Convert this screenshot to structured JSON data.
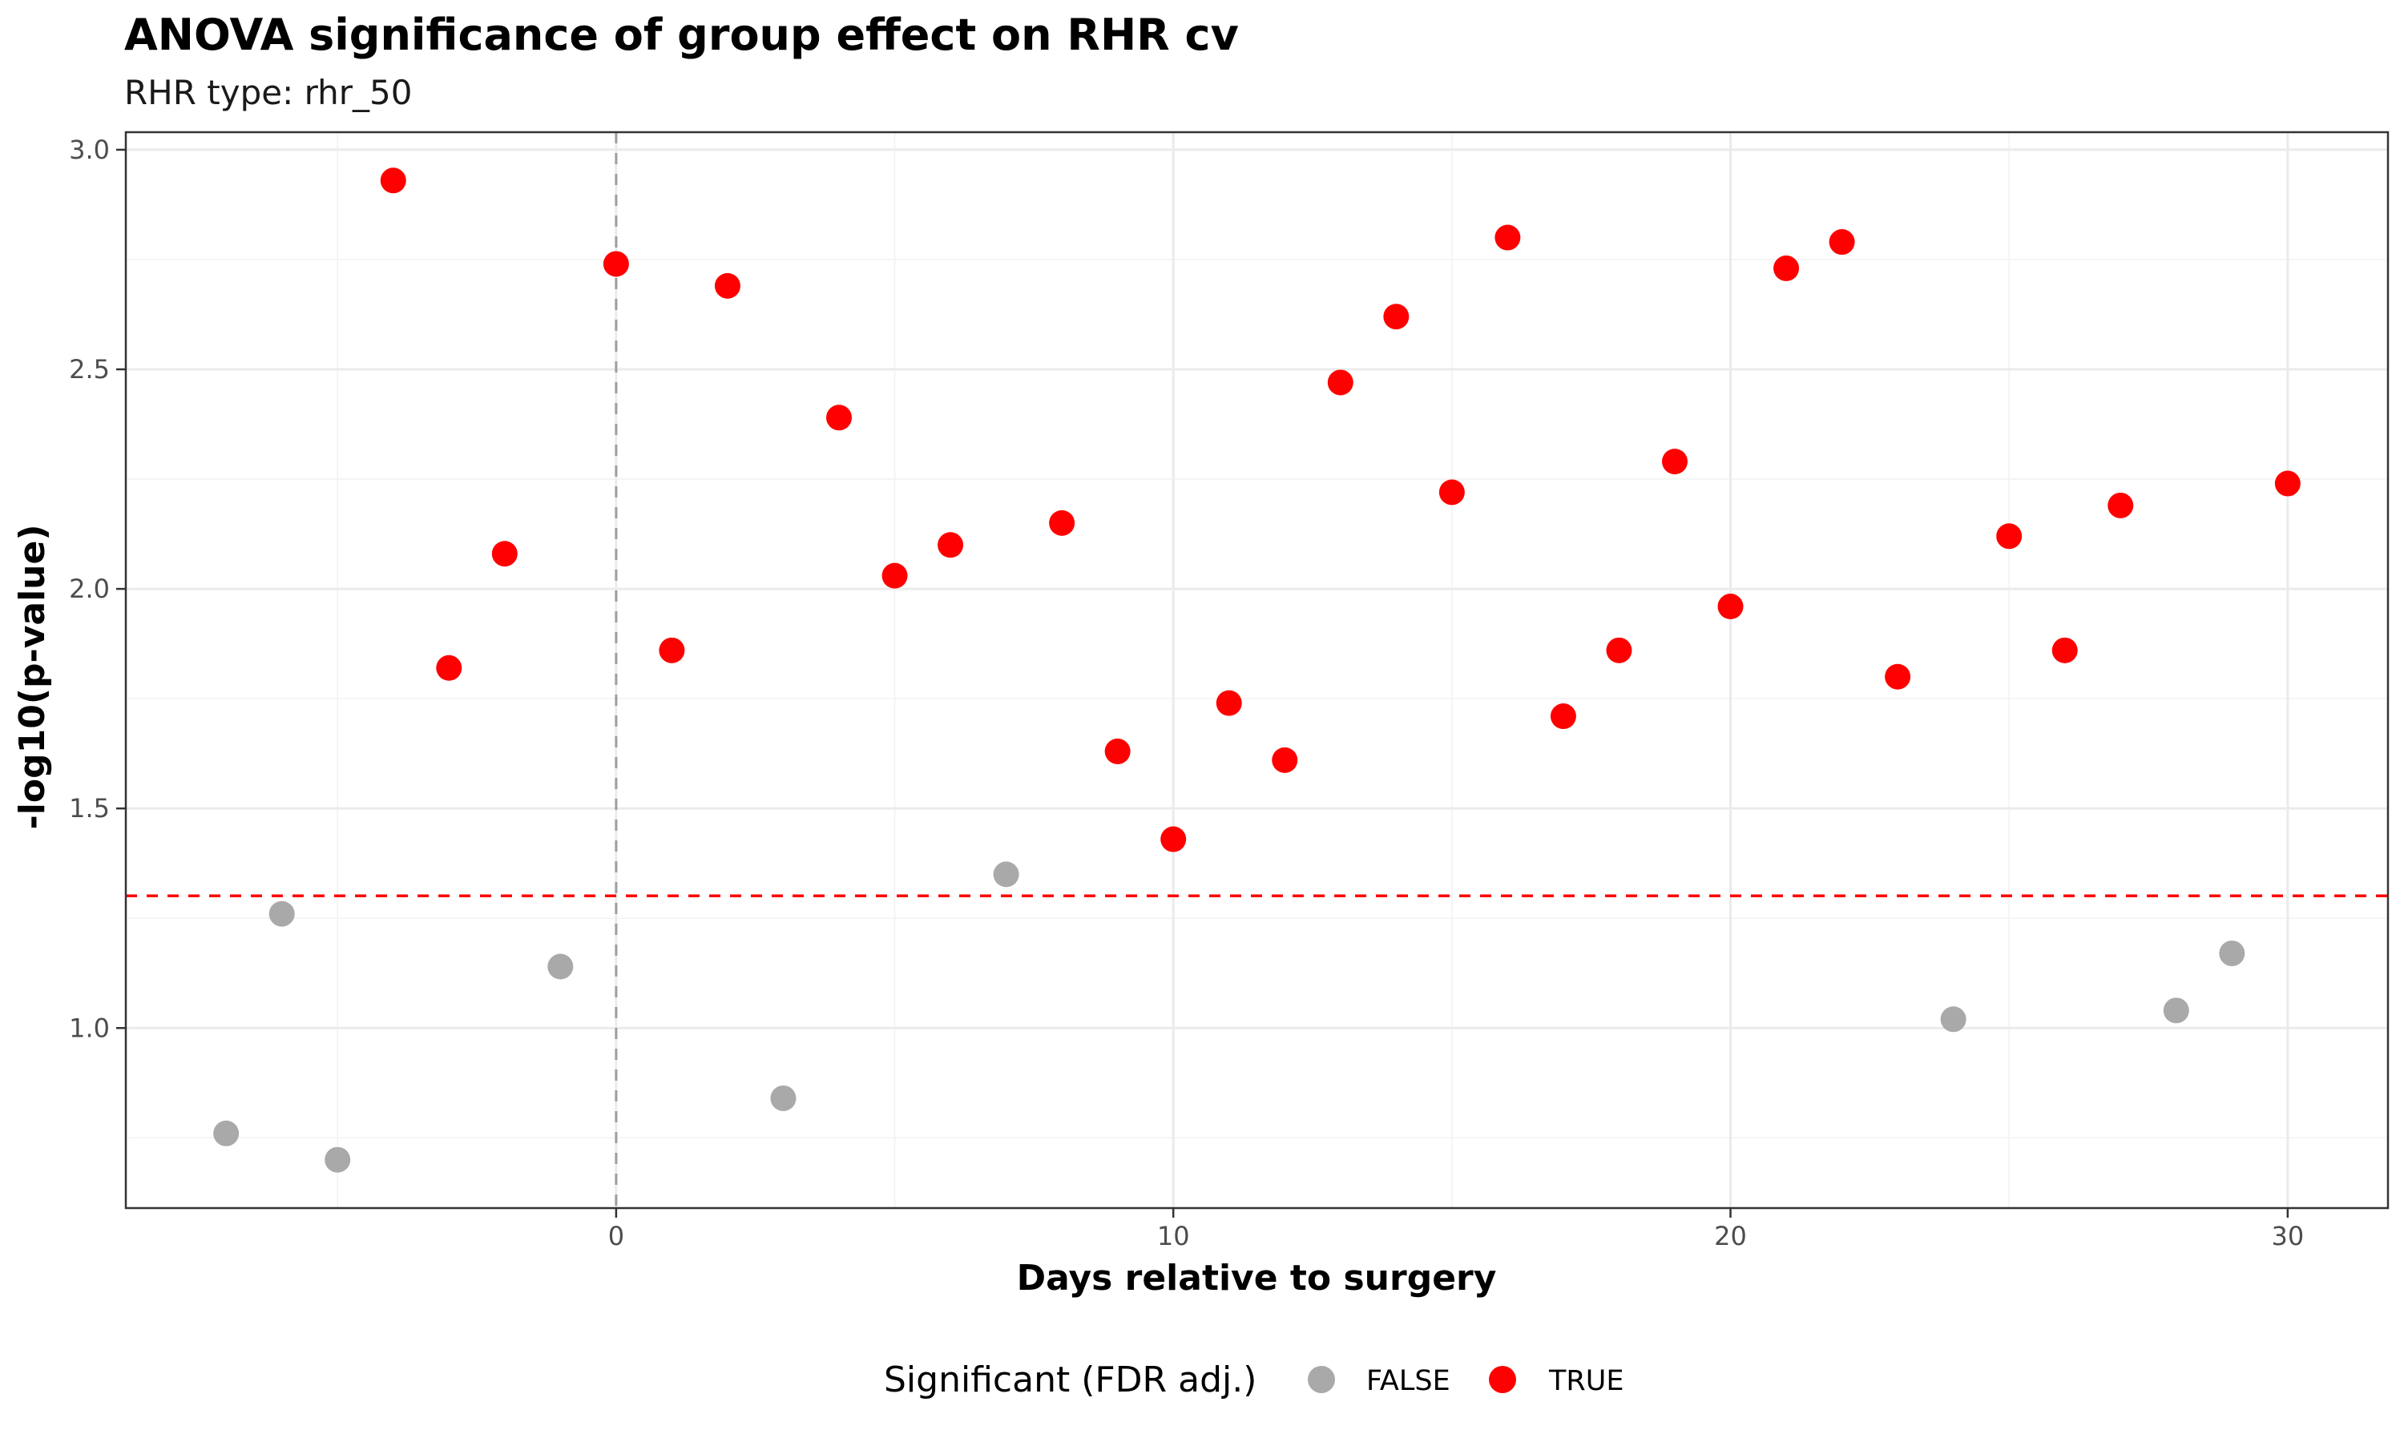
{
  "chart_data": {
    "type": "scatter",
    "title": "ANOVA significance of group effect on RHR cv",
    "subtitle": "RHR type: rhr_50",
    "xlabel": "Days relative to surgery",
    "ylabel": "-log10(p-value)",
    "xlim": [
      -8.8,
      31.8
    ],
    "ylim": [
      0.59,
      3.04
    ],
    "x_ticks": [
      0,
      10,
      20,
      30
    ],
    "y_ticks": [
      1.0,
      1.5,
      2.0,
      2.5,
      3.0
    ],
    "x_tick_labels": [
      "0",
      "10",
      "20",
      "30"
    ],
    "y_tick_labels": [
      "1.0",
      "1.5",
      "2.0",
      "2.5",
      "3.0"
    ],
    "grid": true,
    "reference_lines": {
      "vertical_x": 0,
      "vertical_color": "#9e9e9e",
      "horizontal_y": 1.301,
      "horizontal_color": "#ff0000"
    },
    "legend": {
      "title": "Significant (FDR adj.)",
      "position": "bottom",
      "entries": [
        {
          "label": "FALSE",
          "color": "#a9a9a9"
        },
        {
          "label": "TRUE",
          "color": "#ff0000"
        }
      ]
    },
    "series": [
      {
        "name": "FALSE",
        "color": "#a9a9a9",
        "points": [
          {
            "x": -7,
            "y": 0.76
          },
          {
            "x": -6,
            "y": 1.26
          },
          {
            "x": -5,
            "y": 0.7
          },
          {
            "x": -1,
            "y": 1.14
          },
          {
            "x": 3,
            "y": 0.84
          },
          {
            "x": 7,
            "y": 1.35
          },
          {
            "x": 24,
            "y": 1.02
          },
          {
            "x": 28,
            "y": 1.04
          },
          {
            "x": 29,
            "y": 1.17
          }
        ]
      },
      {
        "name": "TRUE",
        "color": "#ff0000",
        "points": [
          {
            "x": -4,
            "y": 2.93
          },
          {
            "x": -3,
            "y": 1.82
          },
          {
            "x": -2,
            "y": 2.08
          },
          {
            "x": 0,
            "y": 2.74
          },
          {
            "x": 1,
            "y": 1.86
          },
          {
            "x": 2,
            "y": 2.69
          },
          {
            "x": 4,
            "y": 2.39
          },
          {
            "x": 5,
            "y": 2.03
          },
          {
            "x": 6,
            "y": 2.1
          },
          {
            "x": 8,
            "y": 2.15
          },
          {
            "x": 9,
            "y": 1.63
          },
          {
            "x": 10,
            "y": 1.43
          },
          {
            "x": 11,
            "y": 1.74
          },
          {
            "x": 12,
            "y": 1.61
          },
          {
            "x": 13,
            "y": 2.47
          },
          {
            "x": 14,
            "y": 2.62
          },
          {
            "x": 15,
            "y": 2.22
          },
          {
            "x": 16,
            "y": 2.8
          },
          {
            "x": 17,
            "y": 1.71
          },
          {
            "x": 18,
            "y": 1.86
          },
          {
            "x": 19,
            "y": 2.29
          },
          {
            "x": 20,
            "y": 1.96
          },
          {
            "x": 21,
            "y": 2.73
          },
          {
            "x": 22,
            "y": 2.79
          },
          {
            "x": 23,
            "y": 1.8
          },
          {
            "x": 25,
            "y": 2.12
          },
          {
            "x": 26,
            "y": 1.86
          },
          {
            "x": 27,
            "y": 2.19
          },
          {
            "x": 30,
            "y": 2.24
          }
        ]
      }
    ]
  }
}
